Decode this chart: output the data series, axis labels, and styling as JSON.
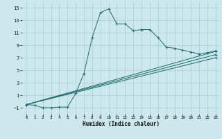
{
  "xlabel": "Humidex (Indice chaleur)",
  "background_color": "#cce8ec",
  "grid_color": "#aacdd4",
  "line_color": "#1a6b6b",
  "xlim": [
    -0.5,
    23.5
  ],
  "ylim": [
    -2.0,
    16.0
  ],
  "yticks": [
    -1,
    1,
    3,
    5,
    7,
    9,
    11,
    13,
    15
  ],
  "xticks": [
    0,
    1,
    2,
    3,
    4,
    5,
    6,
    7,
    8,
    9,
    10,
    11,
    12,
    13,
    14,
    15,
    16,
    17,
    18,
    19,
    20,
    21,
    22,
    23
  ],
  "series": [
    {
      "x": [
        0,
        1,
        2,
        3,
        4,
        5,
        6,
        7,
        8,
        9,
        10,
        11,
        12,
        13,
        14,
        15,
        16,
        17,
        18,
        19,
        20,
        21,
        22,
        23
      ],
      "y": [
        -0.5,
        -0.6,
        -1.0,
        -1.0,
        -0.9,
        -0.9,
        1.3,
        4.5,
        10.2,
        14.2,
        14.8,
        12.4,
        12.4,
        11.3,
        11.5,
        11.5,
        10.2,
        8.7,
        8.5,
        8.2,
        7.9,
        7.6,
        7.8,
        8.1
      ]
    },
    {
      "x": [
        0,
        23
      ],
      "y": [
        -0.5,
        8.0
      ]
    },
    {
      "x": [
        0,
        23
      ],
      "y": [
        -0.5,
        7.5
      ]
    },
    {
      "x": [
        0,
        23
      ],
      "y": [
        -0.5,
        7.0
      ]
    }
  ]
}
